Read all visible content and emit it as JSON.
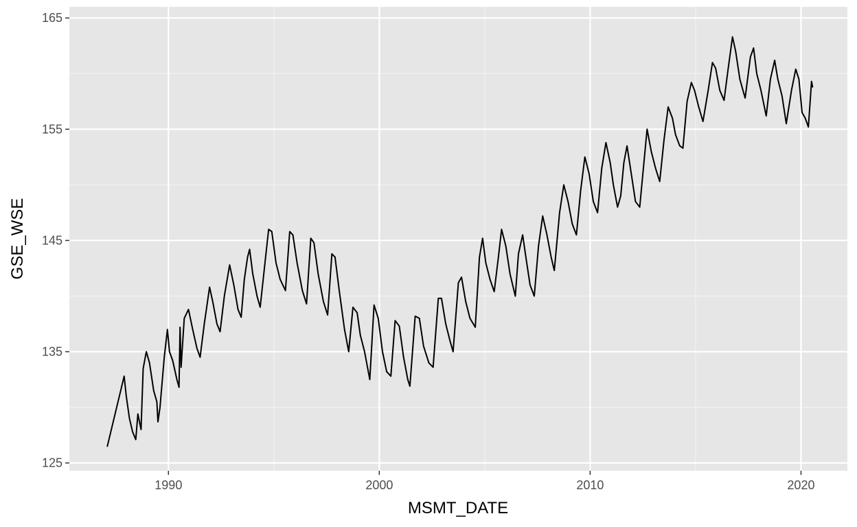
{
  "chart_data": {
    "type": "line",
    "xlabel": "MSMT_DATE",
    "ylabel": "GSE_WSE",
    "x_ticks": [
      1990,
      2000,
      2010,
      2020
    ],
    "y_ticks": [
      125,
      135,
      145,
      155,
      165
    ],
    "xlim": [
      1985.3,
      2022.2
    ],
    "ylim": [
      124.3,
      166.0
    ],
    "grid": true,
    "background": "#e6e6e6",
    "gridline_color": "#ffffff",
    "line_color": "#000000",
    "series": [
      {
        "points": [
          [
            1987.1,
            126.5
          ],
          [
            1987.9,
            132.8
          ],
          [
            1988.0,
            131.0
          ],
          [
            1988.15,
            129.0
          ],
          [
            1988.3,
            127.8
          ],
          [
            1988.45,
            127.1
          ],
          [
            1988.55,
            129.4
          ],
          [
            1988.7,
            128.0
          ],
          [
            1988.8,
            133.5
          ],
          [
            1988.95,
            135.0
          ],
          [
            1989.1,
            134.0
          ],
          [
            1989.3,
            131.5
          ],
          [
            1989.45,
            130.5
          ],
          [
            1989.5,
            128.7
          ],
          [
            1989.6,
            130.0
          ],
          [
            1989.8,
            134.5
          ],
          [
            1989.95,
            137.0
          ],
          [
            1990.05,
            135.0
          ],
          [
            1990.2,
            134.2
          ],
          [
            1990.4,
            132.5
          ],
          [
            1990.5,
            131.8
          ],
          [
            1990.55,
            137.2
          ],
          [
            1990.6,
            133.6
          ],
          [
            1990.75,
            138.0
          ],
          [
            1990.95,
            138.8
          ],
          [
            1991.15,
            137.0
          ],
          [
            1991.35,
            135.3
          ],
          [
            1991.5,
            134.5
          ],
          [
            1991.7,
            137.5
          ],
          [
            1991.95,
            140.8
          ],
          [
            1992.1,
            139.5
          ],
          [
            1992.3,
            137.5
          ],
          [
            1992.45,
            136.8
          ],
          [
            1992.65,
            140.0
          ],
          [
            1992.9,
            142.8
          ],
          [
            1993.1,
            141.0
          ],
          [
            1993.3,
            138.8
          ],
          [
            1993.45,
            138.1
          ],
          [
            1993.6,
            141.5
          ],
          [
            1993.75,
            143.5
          ],
          [
            1993.85,
            144.2
          ],
          [
            1994.0,
            142.0
          ],
          [
            1994.2,
            140.0
          ],
          [
            1994.35,
            139.0
          ],
          [
            1994.55,
            142.5
          ],
          [
            1994.75,
            146.0
          ],
          [
            1994.9,
            145.8
          ],
          [
            1995.1,
            143.0
          ],
          [
            1995.3,
            141.5
          ],
          [
            1995.55,
            140.5
          ],
          [
            1995.75,
            145.8
          ],
          [
            1995.9,
            145.5
          ],
          [
            1996.1,
            143.0
          ],
          [
            1996.35,
            140.5
          ],
          [
            1996.55,
            139.3
          ],
          [
            1996.75,
            145.2
          ],
          [
            1996.9,
            144.8
          ],
          [
            1997.1,
            142.0
          ],
          [
            1997.35,
            139.5
          ],
          [
            1997.55,
            138.3
          ],
          [
            1997.75,
            143.8
          ],
          [
            1997.9,
            143.5
          ],
          [
            1998.1,
            140.5
          ],
          [
            1998.35,
            137.0
          ],
          [
            1998.55,
            135.0
          ],
          [
            1998.75,
            139.0
          ],
          [
            1998.95,
            138.5
          ],
          [
            1999.1,
            136.5
          ],
          [
            1999.3,
            135.0
          ],
          [
            1999.55,
            132.5
          ],
          [
            1999.75,
            139.2
          ],
          [
            1999.95,
            138.0
          ],
          [
            2000.15,
            135.0
          ],
          [
            2000.35,
            133.2
          ],
          [
            2000.55,
            132.8
          ],
          [
            2000.75,
            137.8
          ],
          [
            2000.95,
            137.3
          ],
          [
            2001.15,
            134.5
          ],
          [
            2001.35,
            132.5
          ],
          [
            2001.45,
            131.9
          ],
          [
            2001.7,
            138.2
          ],
          [
            2001.9,
            138.0
          ],
          [
            2002.1,
            135.5
          ],
          [
            2002.35,
            134.0
          ],
          [
            2002.55,
            133.6
          ],
          [
            2002.8,
            139.8
          ],
          [
            2002.95,
            139.8
          ],
          [
            2003.15,
            137.5
          ],
          [
            2003.35,
            136.0
          ],
          [
            2003.5,
            135.0
          ],
          [
            2003.75,
            141.2
          ],
          [
            2003.9,
            141.7
          ],
          [
            2004.1,
            139.5
          ],
          [
            2004.3,
            138.0
          ],
          [
            2004.55,
            137.2
          ],
          [
            2004.75,
            143.5
          ],
          [
            2004.9,
            145.2
          ],
          [
            2005.05,
            143.0
          ],
          [
            2005.25,
            141.5
          ],
          [
            2005.45,
            140.4
          ],
          [
            2005.65,
            143.5
          ],
          [
            2005.8,
            146.0
          ],
          [
            2006.0,
            144.5
          ],
          [
            2006.2,
            142.0
          ],
          [
            2006.45,
            140.0
          ],
          [
            2006.6,
            143.8
          ],
          [
            2006.8,
            145.5
          ],
          [
            2006.95,
            143.5
          ],
          [
            2007.15,
            141.0
          ],
          [
            2007.35,
            140.0
          ],
          [
            2007.55,
            144.5
          ],
          [
            2007.75,
            147.2
          ],
          [
            2007.95,
            145.5
          ],
          [
            2008.15,
            143.5
          ],
          [
            2008.3,
            142.3
          ],
          [
            2008.55,
            147.5
          ],
          [
            2008.75,
            150.0
          ],
          [
            2008.95,
            148.5
          ],
          [
            2009.15,
            146.5
          ],
          [
            2009.35,
            145.5
          ],
          [
            2009.55,
            149.5
          ],
          [
            2009.75,
            152.5
          ],
          [
            2009.95,
            151.0
          ],
          [
            2010.15,
            148.5
          ],
          [
            2010.35,
            147.5
          ],
          [
            2010.55,
            151.5
          ],
          [
            2010.75,
            153.8
          ],
          [
            2010.95,
            152.0
          ],
          [
            2011.1,
            150.0
          ],
          [
            2011.3,
            148.0
          ],
          [
            2011.45,
            149.0
          ],
          [
            2011.6,
            152.0
          ],
          [
            2011.75,
            153.5
          ],
          [
            2011.95,
            151.0
          ],
          [
            2012.15,
            148.5
          ],
          [
            2012.35,
            148.0
          ],
          [
            2012.55,
            152.0
          ],
          [
            2012.7,
            155.0
          ],
          [
            2012.9,
            153.0
          ],
          [
            2013.1,
            151.5
          ],
          [
            2013.3,
            150.3
          ],
          [
            2013.5,
            154.0
          ],
          [
            2013.7,
            157.0
          ],
          [
            2013.9,
            156.0
          ],
          [
            2014.05,
            154.5
          ],
          [
            2014.25,
            153.5
          ],
          [
            2014.4,
            153.3
          ],
          [
            2014.6,
            157.5
          ],
          [
            2014.8,
            159.2
          ],
          [
            2014.95,
            158.5
          ],
          [
            2015.15,
            157.0
          ],
          [
            2015.35,
            155.7
          ],
          [
            2015.6,
            158.5
          ],
          [
            2015.8,
            161.0
          ],
          [
            2015.95,
            160.5
          ],
          [
            2016.15,
            158.5
          ],
          [
            2016.35,
            157.6
          ],
          [
            2016.55,
            160.5
          ],
          [
            2016.75,
            163.3
          ],
          [
            2016.9,
            162.0
          ],
          [
            2017.1,
            159.5
          ],
          [
            2017.35,
            157.8
          ],
          [
            2017.6,
            161.5
          ],
          [
            2017.75,
            162.3
          ],
          [
            2017.9,
            160.0
          ],
          [
            2018.1,
            158.5
          ],
          [
            2018.35,
            156.2
          ],
          [
            2018.55,
            159.5
          ],
          [
            2018.75,
            161.2
          ],
          [
            2018.9,
            159.5
          ],
          [
            2019.1,
            158.0
          ],
          [
            2019.3,
            155.5
          ],
          [
            2019.55,
            158.5
          ],
          [
            2019.75,
            160.4
          ],
          [
            2019.9,
            159.5
          ],
          [
            2020.05,
            156.5
          ],
          [
            2020.2,
            156.0
          ],
          [
            2020.35,
            155.2
          ],
          [
            2020.5,
            159.3
          ],
          [
            2020.55,
            158.8
          ]
        ]
      }
    ]
  }
}
